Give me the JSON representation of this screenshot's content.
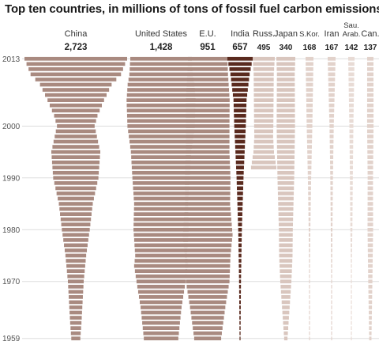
{
  "title": "Top ten countries, in millions of tons of fossil fuel carbon emissions",
  "colors": {
    "china_us_eu": "#a98a80",
    "india": "#5a2a1e",
    "russia": "#d9c6be",
    "japan": "#d9c6be",
    "skor": "#e2d2cb",
    "iran": "#e2d2cb",
    "sauarab": "#e8dbd5",
    "canada": "#e2d2cb",
    "gridline": "#dddddd",
    "axis_text": "#555555"
  },
  "chart_data": {
    "type": "bar",
    "orientation": "horizontal-centered",
    "title": "Top ten countries, in millions of tons of fossil fuel carbon emissions",
    "xlabel": "",
    "ylabel": "",
    "year_range": [
      1959,
      2013
    ],
    "year_ticks": [
      2013,
      2000,
      1990,
      1980,
      1970,
      1959
    ],
    "grid": true,
    "countries": [
      {
        "key": "china",
        "name": "China",
        "value_2013": 2723,
        "label": "2,723"
      },
      {
        "key": "us",
        "name": "United States",
        "value_2013": 1428,
        "label": "1,428"
      },
      {
        "key": "eu",
        "name": "E.U.",
        "value_2013": 951,
        "label": "951"
      },
      {
        "key": "india",
        "name": "India",
        "value_2013": 657,
        "label": "657"
      },
      {
        "key": "russia",
        "name": "Russ.",
        "value_2013": 495,
        "label": "495"
      },
      {
        "key": "japan",
        "name": "Japan",
        "value_2013": 340,
        "label": "340"
      },
      {
        "key": "skor",
        "name": "S.Kor.",
        "value_2013": 168,
        "label": "168"
      },
      {
        "key": "iran",
        "name": "Iran",
        "value_2013": 167,
        "label": "167"
      },
      {
        "key": "sauarab",
        "name": "Sau.\nArab.",
        "value_2013": 142,
        "label": "142"
      },
      {
        "key": "canada",
        "name": "Can.",
        "value_2013": 137,
        "label": "137"
      }
    ],
    "series": [
      {
        "key": "china",
        "name": "China",
        "anchor_years": [
          1959,
          1962,
          1970,
          1975,
          1980,
          1985,
          1990,
          1995,
          2000,
          2002,
          2005,
          2008,
          2010,
          2013
        ],
        "anchor_values": [
          240,
          300,
          420,
          550,
          740,
          900,
          1200,
          1300,
          1000,
          1150,
          1500,
          1900,
          2400,
          2723
        ]
      },
      {
        "key": "us",
        "name": "United States",
        "anchor_years": [
          1959,
          1965,
          1970,
          1973,
          1975,
          1980,
          1985,
          1990,
          1995,
          2000,
          2005,
          2008,
          2010,
          2013
        ],
        "anchor_values": [
          800,
          950,
          1140,
          1250,
          1200,
          1280,
          1250,
          1330,
          1400,
          1560,
          1600,
          1550,
          1470,
          1428
        ]
      },
      {
        "key": "eu",
        "name": "E.U.",
        "anchor_years": [
          1959,
          1965,
          1970,
          1975,
          1979,
          1985,
          1990,
          1995,
          2000,
          2005,
          2010,
          2013
        ],
        "anchor_values": [
          650,
          850,
          1050,
          1100,
          1200,
          1080,
          1100,
          1050,
          1050,
          1060,
          980,
          951
        ]
      },
      {
        "key": "india",
        "name": "India",
        "anchor_years": [
          1959,
          1970,
          1980,
          1990,
          2000,
          2005,
          2010,
          2013
        ],
        "anchor_values": [
          25,
          50,
          95,
          180,
          300,
          340,
          500,
          657
        ]
      },
      {
        "key": "russia",
        "name": "Russ.",
        "anchor_years": [
          1992,
          1995,
          1998,
          2000,
          2005,
          2010,
          2013
        ],
        "anchor_values": [
          570,
          460,
          420,
          430,
          440,
          450,
          495
        ]
      },
      {
        "key": "japan",
        "name": "Japan",
        "anchor_years": [
          1959,
          1970,
          1975,
          1980,
          1990,
          2000,
          2010,
          2013
        ],
        "anchor_values": [
          60,
          200,
          240,
          250,
          300,
          330,
          320,
          340
        ]
      },
      {
        "key": "skor",
        "name": "S.Kor.",
        "anchor_years": [
          1959,
          1970,
          1980,
          1990,
          2000,
          2013
        ],
        "anchor_values": [
          3,
          14,
          35,
          70,
          120,
          168
        ]
      },
      {
        "key": "iran",
        "name": "Iran",
        "anchor_years": [
          1959,
          1970,
          1980,
          1990,
          2000,
          2013
        ],
        "anchor_values": [
          5,
          18,
          35,
          55,
          90,
          167
        ]
      },
      {
        "key": "sauarab",
        "name": "Sau.\nArab.",
        "anchor_years": [
          1959,
          1970,
          1980,
          1990,
          2000,
          2013
        ],
        "anchor_values": [
          2,
          10,
          45,
          65,
          90,
          142
        ]
      },
      {
        "key": "canada",
        "name": "Can.",
        "anchor_years": [
          1959,
          1970,
          1980,
          1990,
          2000,
          2013
        ],
        "anchor_values": [
          50,
          90,
          120,
          115,
          140,
          137
        ]
      }
    ]
  }
}
